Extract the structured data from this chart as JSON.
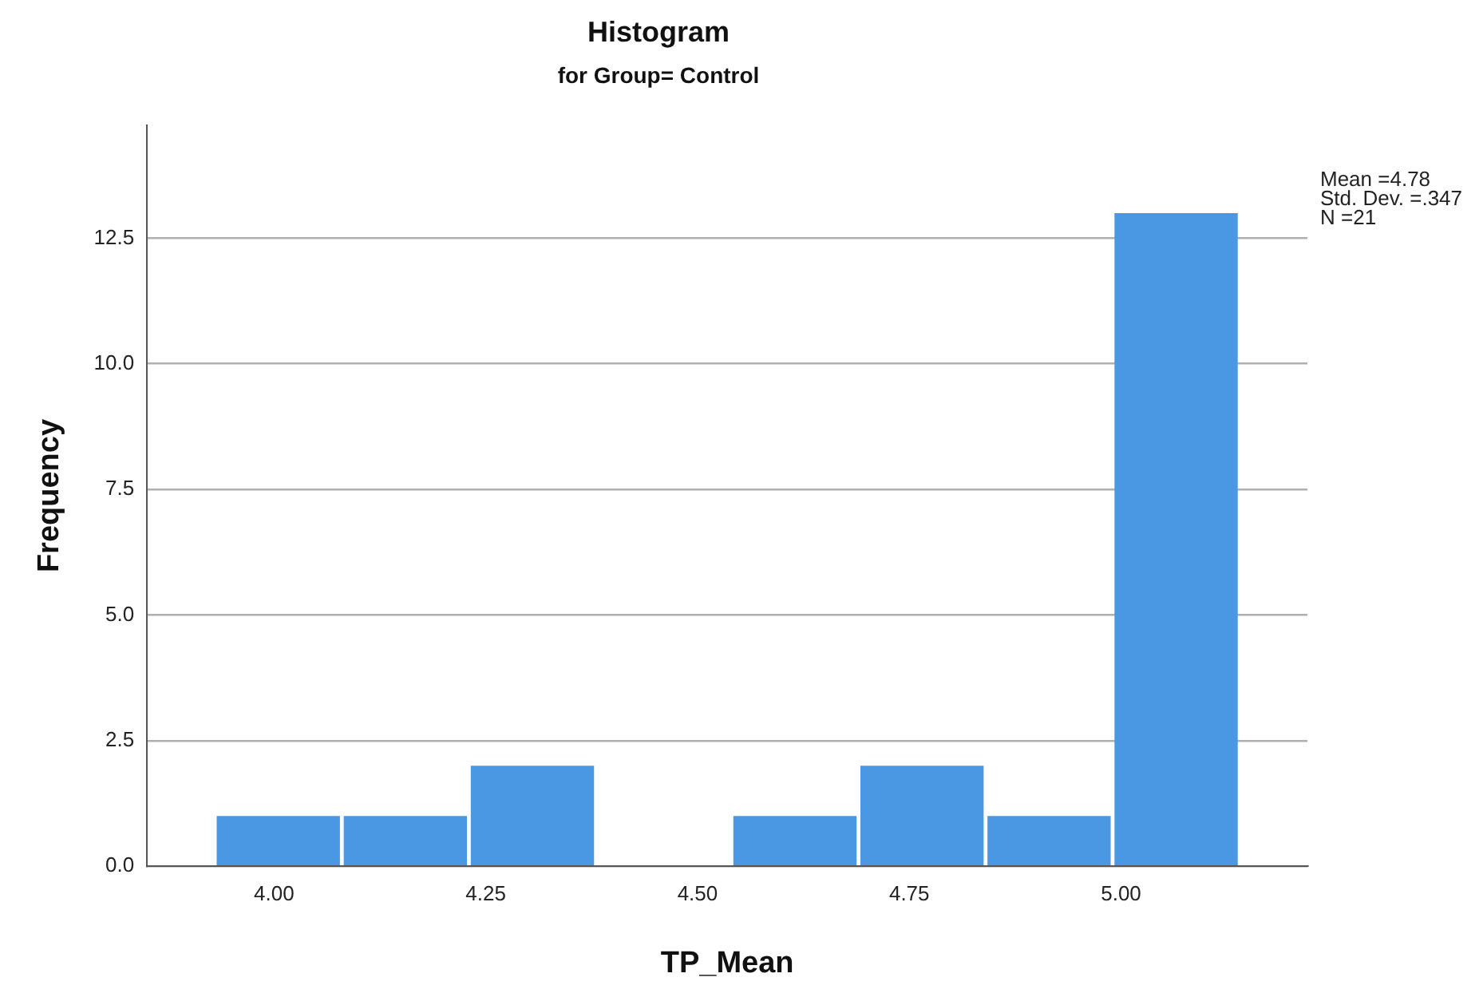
{
  "chart_data": {
    "type": "histogram",
    "title": "Histogram",
    "subtitle": "for Group= Control",
    "xlabel": "TP_Mean",
    "ylabel": "Frequency",
    "bins": [
      3.93,
      4.08,
      4.23,
      4.38,
      4.54,
      4.69,
      4.84,
      4.99,
      5.14
    ],
    "values": [
      1,
      1,
      2,
      0,
      1,
      2,
      1,
      13
    ],
    "color": "#4a98e3",
    "xlim": [
      3.85,
      5.22
    ],
    "xticks": [
      {
        "value": 4,
        "label": "4.00"
      },
      {
        "value": 4.25,
        "label": "4.25"
      },
      {
        "value": 4.5,
        "label": "4.50"
      },
      {
        "value": 4.75,
        "label": "4.75"
      },
      {
        "value": 5,
        "label": "5.00"
      }
    ],
    "ylim": [
      0,
      14.75
    ],
    "yticks": [
      {
        "value": 0,
        "label": "0.0"
      },
      {
        "value": 2.5,
        "label": "2.5"
      },
      {
        "value": 5,
        "label": "5.0"
      },
      {
        "value": 7.5,
        "label": "7.5"
      },
      {
        "value": 10,
        "label": "10.0"
      },
      12.5
    ],
    "grid": "y",
    "annotations": [
      "Mean =4.78",
      "Std. Dev. =.347",
      "N =21"
    ]
  }
}
